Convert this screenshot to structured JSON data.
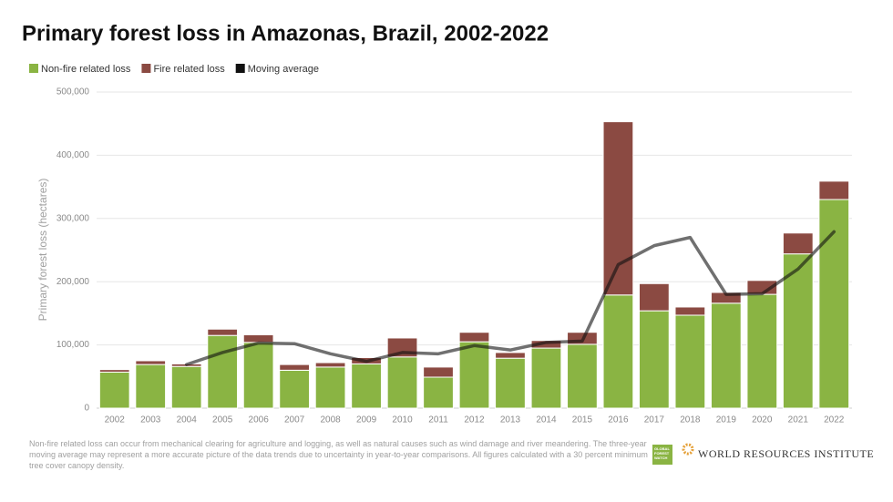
{
  "chart_data": {
    "type": "stacked_bar_line",
    "title": "Primary forest loss in Amazonas, Brazil, 2002-2022",
    "y_label": "Primary forest loss (hectares)",
    "categories": [
      "2002",
      "2003",
      "2004",
      "2005",
      "2006",
      "2007",
      "2008",
      "2009",
      "2010",
      "2011",
      "2012",
      "2013",
      "2014",
      "2015",
      "2016",
      "2017",
      "2018",
      "2019",
      "2020",
      "2021",
      "2022"
    ],
    "series": [
      {
        "name": "Non-fire related loss",
        "color": "#8ab443",
        "kind": "bar",
        "values": [
          57000,
          69000,
          66000,
          115000,
          104000,
          60000,
          65000,
          70000,
          81000,
          49000,
          105000,
          79000,
          95000,
          101000,
          179000,
          154000,
          147000,
          166000,
          180000,
          244000,
          330000
        ]
      },
      {
        "name": "Fire related loss",
        "color": "#8b4a42",
        "kind": "bar",
        "values": [
          4000,
          6000,
          4000,
          10000,
          12000,
          9000,
          7000,
          10000,
          30000,
          16000,
          15000,
          9000,
          12000,
          19000,
          274000,
          43000,
          13000,
          17000,
          22000,
          33000,
          29000
        ]
      },
      {
        "name": "Moving average",
        "color": "#111111",
        "kind": "line",
        "values": [
          null,
          null,
          69000,
          88000,
          103000,
          102000,
          86000,
          74000,
          88000,
          86000,
          99000,
          92000,
          104000,
          106000,
          227000,
          257000,
          270000,
          180000,
          181000,
          220000,
          279000
        ]
      }
    ],
    "ylim": [
      0,
      500000
    ],
    "yticks": [
      0,
      {
        "value": 100000,
        "label": "100,000"
      },
      {
        "value": 200000,
        "label": "200,000"
      },
      {
        "value": 300000,
        "label": "300,000"
      },
      {
        "value": 400000,
        "label": "400,000"
      },
      {
        "value": 500000,
        "label": "500,000"
      }
    ],
    "grid": true
  },
  "footnote": "Non-fire related loss can occur from mechanical clearing for agriculture and logging, as well as natural causes such as wind damage and river meandering. The three-year moving average may represent a more accurate picture of the data trends due to uncertainty in year-to-year comparisons. All figures calculated with a 30 percent minimum tree cover canopy density.",
  "logos": [
    "GLOBAL FOREST WATCH",
    "WORLD RESOURCES INSTITUTE"
  ]
}
